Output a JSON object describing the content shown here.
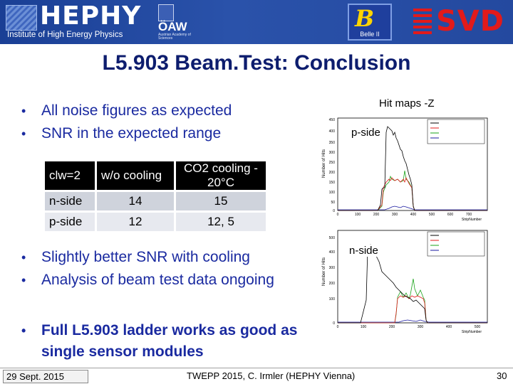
{
  "header": {
    "hephy_name": "HEPHY",
    "hephy_subtitle": "Institute of High Energy Physics",
    "oaw_name": "ÖAW",
    "oaw_subtitle": "Austrian Academy of Sciences",
    "belle_name": "Belle II",
    "svd_name": "SVD",
    "banner_color": "#20449a",
    "svd_color": "#e21a1a"
  },
  "title": "L5.903 Beam.Test: Conclusion",
  "bullets_top": [
    "All noise figures as expected",
    "SNR in the expected range"
  ],
  "table": {
    "headers": [
      "clw=2",
      "w/o cooling",
      "CO2 cooling - 20°C"
    ],
    "rows": [
      [
        "n-side",
        "14",
        "15"
      ],
      [
        "p-side",
        "12",
        "12, 5"
      ]
    ]
  },
  "bullets_mid": [
    "Slightly better SNR with cooling",
    "Analysis of beam test data ongoing"
  ],
  "bullets_bottom": [
    "Full L5.903 ladder works as good as single sensor modules"
  ],
  "hitmaps": {
    "label": "Hit maps -Z",
    "p_side_label": "p-side",
    "n_side_label": "n-side",
    "ylabel": "Number of Hits",
    "xlabel": "StripNumber",
    "series_colors": [
      "#000000",
      "#e21a1a",
      "#1aa31a",
      "#1a1aa0"
    ]
  },
  "footer": {
    "date": "29 Sept. 2015",
    "conference": "TWEPP 2015, C. Irmler (HEPHY Vienna)",
    "page": "30"
  }
}
